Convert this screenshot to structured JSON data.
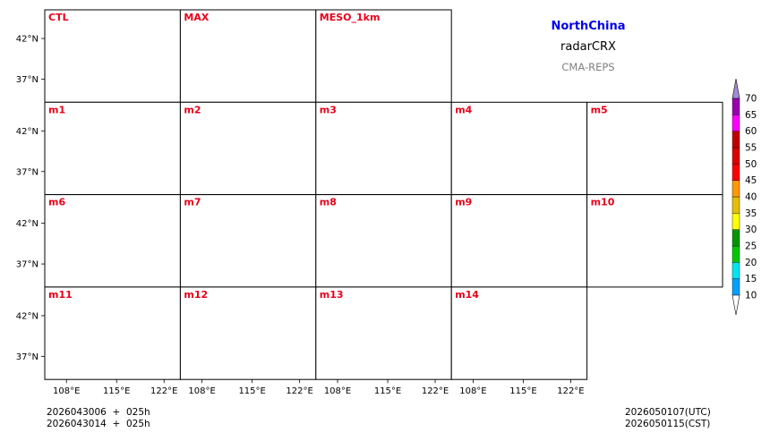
{
  "header": {
    "region": "NorthChina",
    "variable": "radarCRX",
    "model": "CMA-REPS"
  },
  "panels": [
    {
      "label": "CTL",
      "seed": 11,
      "intensity": 0.55
    },
    {
      "label": "MAX",
      "seed": 23,
      "intensity": 1.0
    },
    {
      "label": "MESO_1km",
      "seed": 37,
      "intensity": 0.75
    },
    {
      "label": "m1",
      "seed": 41,
      "intensity": 0.55
    },
    {
      "label": "m2",
      "seed": 53,
      "intensity": 0.55
    },
    {
      "label": "m3",
      "seed": 67,
      "intensity": 0.6
    },
    {
      "label": "m4",
      "seed": 71,
      "intensity": 0.45
    },
    {
      "label": "m5",
      "seed": 83,
      "intensity": 0.5
    },
    {
      "label": "m6",
      "seed": 97,
      "intensity": 0.6
    },
    {
      "label": "m7",
      "seed": 101,
      "intensity": 0.55
    },
    {
      "label": "m8",
      "seed": 113,
      "intensity": 0.55
    },
    {
      "label": "m9",
      "seed": 127,
      "intensity": 0.45
    },
    {
      "label": "m10",
      "seed": 131,
      "intensity": 0.6
    },
    {
      "label": "m11",
      "seed": 149,
      "intensity": 0.5
    },
    {
      "label": "m12",
      "seed": 157,
      "intensity": 0.55
    },
    {
      "label": "m13",
      "seed": 163,
      "intensity": 0.55
    },
    {
      "label": "m14",
      "seed": 173,
      "intensity": 0.5
    }
  ],
  "axes": {
    "lat_ticks": [
      "42°N",
      "37°N"
    ],
    "lon_ticks": [
      "108°E",
      "115°E",
      "122°E"
    ]
  },
  "colorbar": {
    "levels": [
      "10",
      "15",
      "20",
      "25",
      "30",
      "35",
      "40",
      "45",
      "50",
      "55",
      "60",
      "65",
      "70"
    ],
    "colors": [
      "#00a0ff",
      "#00e6f0",
      "#00c800",
      "#009600",
      "#ffff00",
      "#e6c000",
      "#ff9900",
      "#ff0000",
      "#dd0000",
      "#c00000",
      "#ff00ff",
      "#9900b0",
      "#a78bd6"
    ]
  },
  "footer": {
    "init_line1": "2026043006  +  025h",
    "init_line2": "2026043014  +  025h",
    "valid_utc": "2026050107(UTC)",
    "valid_cst": "2026050115(CST)"
  }
}
